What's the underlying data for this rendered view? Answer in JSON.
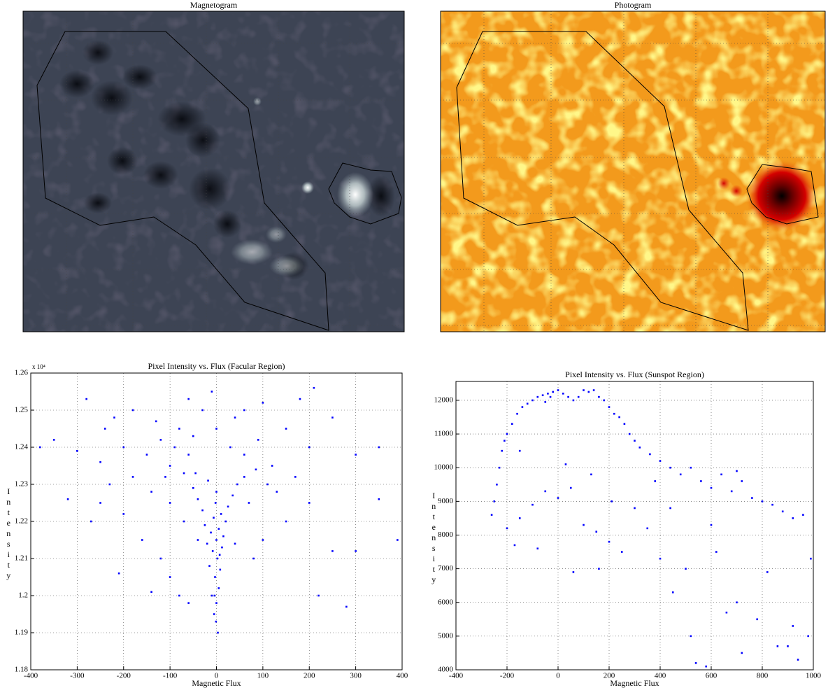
{
  "chart_data": [
    {
      "type": "image",
      "title": "Magnetogram"
    },
    {
      "type": "image",
      "title": "Photogram"
    },
    {
      "type": "scatter",
      "title": "Pixel Intensity vs. Flux (Facular Region)",
      "xlabel": "Magnetic Flux",
      "ylabel": "Intensity",
      "y_multiplier": "x 10⁴",
      "x": [
        -5,
        0,
        -10,
        5,
        -3,
        8,
        -15,
        2,
        -8,
        12,
        -20,
        0,
        15,
        -12,
        5,
        -25,
        20,
        -6,
        10,
        -30,
        25,
        -2,
        -40,
        35,
        0,
        -50,
        45,
        -18,
        60,
        -70,
        -1,
        3,
        -4,
        7,
        -100,
        -150,
        -200,
        -120,
        -80,
        -60,
        -250,
        -300,
        -180,
        -220,
        -130,
        -90,
        -50,
        -30,
        0,
        30,
        60,
        90,
        120,
        150,
        200,
        250,
        300,
        350,
        -350,
        -380,
        -320,
        -270,
        -200,
        -160,
        -120,
        -100,
        -80,
        -60,
        80,
        100,
        150,
        200,
        250,
        300,
        350,
        390,
        220,
        280,
        -210,
        -140,
        -250,
        -180,
        -140,
        -100,
        -70,
        -40,
        40,
        70,
        110,
        170,
        60,
        -10,
        100,
        180,
        210,
        -280,
        -60,
        -240,
        40,
        130,
        -110,
        -230,
        -45,
        85
      ],
      "values": [
        1.195,
        1.198,
        1.2,
        1.202,
        1.205,
        1.207,
        1.208,
        1.21,
        1.212,
        1.213,
        1.214,
        1.215,
        1.216,
        1.217,
        1.218,
        1.219,
        1.22,
        1.221,
        1.222,
        1.223,
        1.224,
        1.225,
        1.226,
        1.227,
        1.228,
        1.229,
        1.23,
        1.231,
        1.232,
        1.233,
        1.193,
        1.19,
        1.2,
        1.211,
        1.235,
        1.238,
        1.24,
        1.242,
        1.245,
        1.238,
        1.236,
        1.239,
        1.25,
        1.248,
        1.247,
        1.24,
        1.243,
        1.25,
        1.245,
        1.24,
        1.238,
        1.242,
        1.235,
        1.245,
        1.24,
        1.248,
        1.238,
        1.24,
        1.242,
        1.24,
        1.226,
        1.22,
        1.222,
        1.215,
        1.21,
        1.205,
        1.2,
        1.198,
        1.21,
        1.215,
        1.22,
        1.225,
        1.212,
        1.212,
        1.226,
        1.215,
        1.2,
        1.197,
        1.206,
        1.201,
        1.225,
        1.232,
        1.228,
        1.225,
        1.22,
        1.215,
        1.214,
        1.225,
        1.23,
        1.232,
        1.25,
        1.255,
        1.252,
        1.253,
        1.256,
        1.253,
        1.253,
        1.245,
        1.248,
        1.228,
        1.232,
        1.23,
        1.233,
        1.234
      ],
      "color": "#0000ff",
      "grid": true,
      "xlim": [
        -400,
        400
      ],
      "xticks": [
        -400,
        -300,
        -200,
        -100,
        0,
        100,
        200,
        300,
        400
      ],
      "ylim": [
        1.18,
        1.26
      ],
      "yticks": [
        1.18,
        1.19,
        1.2,
        1.21,
        1.22,
        1.23,
        1.24,
        1.25,
        1.26
      ]
    },
    {
      "type": "scatter",
      "title": "Pixel Intensity vs. Flux (Sunspot Region)",
      "xlabel": "Magnetic Flux",
      "ylabel": "Intensity",
      "x": [
        -250,
        -240,
        -230,
        -220,
        -210,
        -200,
        -180,
        -160,
        -140,
        -120,
        -100,
        -80,
        -60,
        -40,
        -20,
        0,
        -30,
        -50,
        20,
        40,
        60,
        80,
        100,
        120,
        140,
        160,
        180,
        200,
        220,
        240,
        260,
        280,
        300,
        320,
        360,
        400,
        440,
        480,
        520,
        560,
        600,
        640,
        680,
        720,
        760,
        800,
        840,
        880,
        920,
        960,
        -200,
        -150,
        -100,
        -50,
        0,
        50,
        100,
        150,
        200,
        250,
        300,
        350,
        400,
        450,
        500,
        520,
        540,
        580,
        620,
        660,
        700,
        720,
        780,
        820,
        860,
        900,
        920,
        940,
        980,
        990,
        -170,
        -80,
        60,
        160,
        -260,
        -150,
        30,
        130,
        210,
        380,
        440,
        600,
        700
      ],
      "values": [
        9000,
        9500,
        10000,
        10500,
        10800,
        11000,
        11300,
        11600,
        11800,
        11900,
        12000,
        12100,
        12150,
        12200,
        12250,
        12300,
        12100,
        11950,
        12200,
        12100,
        12000,
        12100,
        12300,
        12250,
        12300,
        12100,
        12000,
        11800,
        11600,
        11500,
        11300,
        11000,
        10800,
        10600,
        10400,
        10200,
        10000,
        9800,
        10000,
        9600,
        9400,
        9800,
        9300,
        9600,
        9100,
        9000,
        8900,
        8700,
        8500,
        8600,
        8200,
        8500,
        8900,
        9300,
        9100,
        9400,
        8300,
        8100,
        7800,
        7500,
        8800,
        8200,
        7300,
        6300,
        7000,
        5000,
        4200,
        4100,
        7500,
        5700,
        6000,
        4500,
        5500,
        6900,
        4700,
        4700,
        5300,
        4300,
        5000,
        7300,
        7700,
        7600,
        6900,
        7000,
        8600,
        10500,
        10100,
        9800,
        9000,
        9600,
        8800,
        8300,
        9900
      ],
      "color": "#0000ff",
      "grid": true,
      "xlim": [
        -400,
        1000
      ],
      "xticks": [
        -400,
        -200,
        0,
        200,
        400,
        600,
        800,
        1000
      ],
      "ylim": [
        4000,
        12560
      ],
      "yticks": [
        4000,
        5000,
        6000,
        7000,
        8000,
        9000,
        10000,
        11000,
        12000
      ]
    }
  ]
}
